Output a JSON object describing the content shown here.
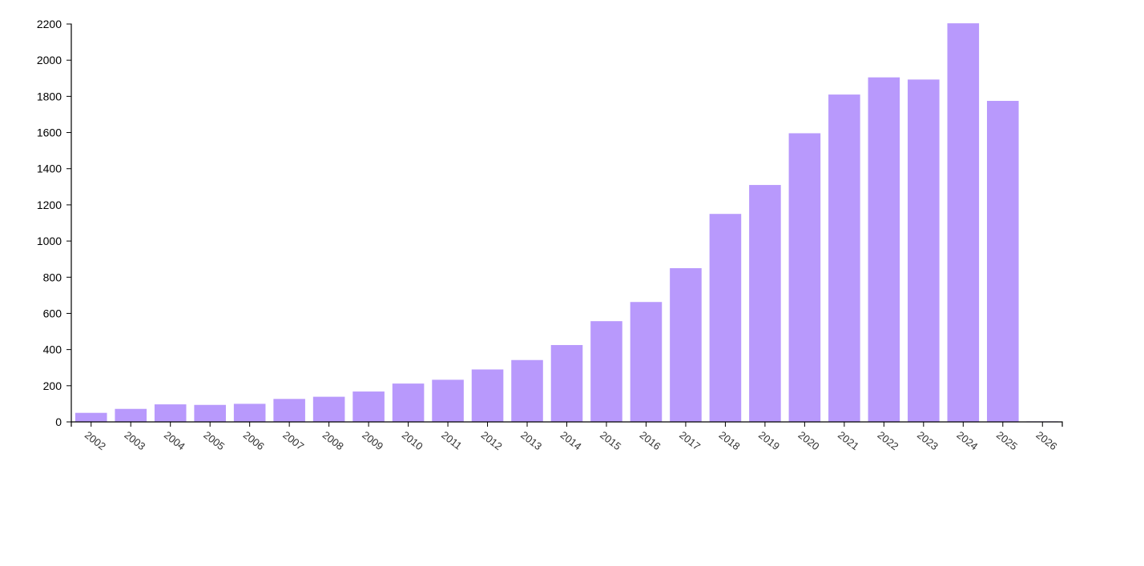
{
  "chart_data": {
    "type": "bar",
    "categories": [
      "2002",
      "2003",
      "2004",
      "2005",
      "2006",
      "2007",
      "2008",
      "2009",
      "2010",
      "2011",
      "2012",
      "2013",
      "2014",
      "2015",
      "2016",
      "2017",
      "2018",
      "2019",
      "2020",
      "2021",
      "2022",
      "2023",
      "2024",
      "2025",
      "2026"
    ],
    "values": [
      50,
      72,
      97,
      94,
      100,
      127,
      139,
      168,
      212,
      233,
      290,
      342,
      425,
      557,
      663,
      850,
      1150,
      1310,
      1596,
      1810,
      1905,
      1893,
      2204,
      1775,
      3
    ],
    "ylim": [
      0,
      2200
    ],
    "yticks": [
      0,
      200,
      400,
      600,
      800,
      1000,
      1200,
      1400,
      1600,
      1800,
      2000,
      2200
    ],
    "title": "",
    "xlabel": "",
    "ylabel": "",
    "bar_color": "#b899fc",
    "grid": false
  }
}
